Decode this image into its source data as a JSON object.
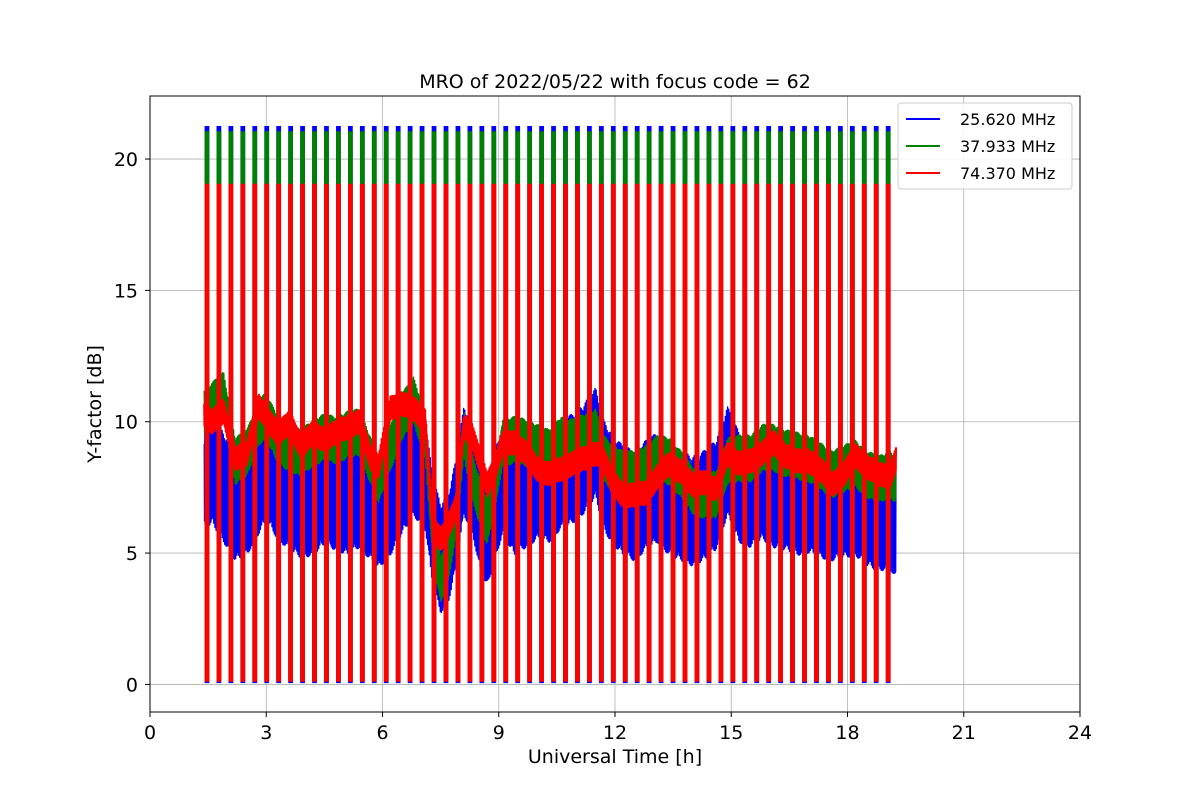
{
  "chart_data": {
    "type": "line",
    "title": "MRO of 2022/05/22 with focus code = 62",
    "xlabel": "Universal Time [h]",
    "ylabel": "Y-factor [dB]",
    "xlim": [
      0,
      24
    ],
    "ylim": [
      -1.05,
      22.4
    ],
    "xticks": [
      0,
      3,
      6,
      9,
      12,
      15,
      18,
      21,
      24
    ],
    "yticks": [
      0,
      5,
      10,
      15,
      20
    ],
    "grid": true,
    "legend_position": "top-right",
    "pulse_start_h": 1.47,
    "pulse_end_h": 19.05,
    "pulse_count": 58,
    "series": [
      {
        "name": "25.620 MHz",
        "color": "#0000ff",
        "pulse_peak": 21.2,
        "pulse_floor": 0.05,
        "baseline_range": [
          1.4,
          19.25
        ],
        "baseline_x": [
          1.4,
          1.6,
          1.9,
          2.2,
          2.5,
          2.8,
          3.0,
          3.3,
          3.6,
          3.9,
          4.2,
          4.5,
          4.8,
          5.1,
          5.4,
          5.7,
          5.9,
          6.2,
          6.5,
          6.8,
          7.1,
          7.3,
          7.5,
          7.7,
          7.9,
          8.1,
          8.3,
          8.5,
          8.7,
          8.9,
          9.1,
          9.4,
          9.7,
          10.0,
          10.3,
          10.6,
          10.9,
          11.2,
          11.5,
          11.7,
          11.9,
          12.2,
          12.5,
          12.8,
          13.1,
          13.4,
          13.7,
          14.0,
          14.3,
          14.6,
          14.9,
          15.2,
          15.5,
          15.8,
          16.1,
          16.4,
          16.7,
          17.0,
          17.3,
          17.6,
          17.9,
          18.2,
          18.5,
          18.8,
          19.1,
          19.25
        ],
        "baseline_y": [
          8.0,
          8.2,
          7.5,
          6.8,
          7.0,
          7.8,
          8.3,
          7.6,
          7.2,
          6.9,
          7.0,
          7.4,
          7.2,
          7.0,
          7.3,
          6.8,
          6.5,
          7.0,
          7.8,
          8.5,
          8.0,
          5.8,
          4.8,
          5.2,
          6.5,
          8.5,
          8.0,
          6.5,
          5.8,
          6.8,
          7.8,
          7.0,
          7.3,
          7.6,
          7.5,
          8.0,
          8.2,
          8.6,
          9.2,
          8.0,
          7.5,
          7.0,
          6.8,
          7.2,
          7.5,
          7.0,
          6.8,
          6.6,
          6.8,
          7.2,
          8.5,
          7.5,
          7.3,
          7.6,
          7.3,
          7.2,
          7.0,
          7.1,
          6.9,
          6.8,
          6.9,
          7.0,
          6.6,
          6.4,
          6.5,
          6.0
        ],
        "baseline_amp": 2.1
      },
      {
        "name": "37.933 MHz",
        "color": "#008000",
        "pulse_peak": 21.0,
        "pulse_floor": 0.15,
        "baseline_range": [
          1.4,
          19.25
        ],
        "baseline_x": [
          1.4,
          1.6,
          1.9,
          2.2,
          2.5,
          2.8,
          3.0,
          3.3,
          3.6,
          3.9,
          4.2,
          4.5,
          4.8,
          5.1,
          5.4,
          5.7,
          5.9,
          6.2,
          6.5,
          6.8,
          7.1,
          7.3,
          7.5,
          7.7,
          7.9,
          8.1,
          8.3,
          8.5,
          8.7,
          8.9,
          9.1,
          9.4,
          9.7,
          10.0,
          10.3,
          10.6,
          10.9,
          11.2,
          11.5,
          11.7,
          11.9,
          12.2,
          12.5,
          12.8,
          13.1,
          13.4,
          13.7,
          14.0,
          14.3,
          14.6,
          14.9,
          15.2,
          15.5,
          15.8,
          16.1,
          16.4,
          16.7,
          17.0,
          17.3,
          17.6,
          17.9,
          18.2,
          18.5,
          18.8,
          19.1,
          19.25
        ],
        "baseline_y": [
          10.3,
          10.6,
          11.0,
          8.5,
          8.8,
          10.0,
          10.2,
          9.3,
          9.0,
          8.8,
          9.2,
          9.4,
          9.3,
          9.5,
          9.6,
          8.5,
          7.8,
          9.0,
          10.2,
          10.8,
          9.5,
          5.5,
          4.0,
          4.8,
          6.5,
          9.5,
          8.0,
          7.0,
          6.2,
          7.5,
          9.2,
          9.3,
          9.2,
          9.0,
          8.8,
          9.3,
          9.2,
          9.4,
          9.6,
          8.6,
          8.3,
          8.0,
          8.0,
          8.2,
          8.6,
          8.5,
          8.0,
          7.4,
          7.2,
          7.2,
          8.5,
          8.6,
          8.6,
          9.0,
          9.0,
          8.8,
          8.7,
          8.6,
          8.3,
          8.0,
          8.2,
          8.4,
          8.0,
          7.8,
          8.0,
          7.8
        ],
        "baseline_amp": 0.9
      },
      {
        "name": "74.370 MHz",
        "color": "#ff0000",
        "pulse_peak": 19.0,
        "pulse_floor": 0.1,
        "baseline_range": [
          1.4,
          19.25
        ],
        "baseline_x": [
          1.4,
          1.6,
          1.9,
          2.2,
          2.5,
          2.8,
          3.0,
          3.3,
          3.6,
          3.9,
          4.2,
          4.5,
          4.8,
          5.1,
          5.4,
          5.7,
          5.9,
          6.2,
          6.5,
          6.8,
          7.1,
          7.3,
          7.5,
          7.7,
          7.9,
          8.1,
          8.3,
          8.5,
          8.7,
          8.9,
          9.1,
          9.4,
          9.7,
          10.0,
          10.3,
          10.6,
          10.9,
          11.2,
          11.5,
          11.7,
          11.9,
          12.2,
          12.5,
          12.8,
          13.1,
          13.4,
          13.7,
          14.0,
          14.3,
          14.6,
          14.9,
          15.2,
          15.5,
          15.8,
          16.1,
          16.4,
          16.7,
          17.0,
          17.3,
          17.6,
          17.9,
          18.2,
          18.5,
          18.8,
          19.1,
          19.25
        ],
        "baseline_y": [
          10.3,
          10.0,
          10.4,
          8.6,
          8.8,
          10.6,
          10.2,
          9.5,
          10.0,
          9.0,
          9.6,
          9.3,
          9.6,
          9.8,
          10.0,
          8.6,
          8.3,
          10.5,
          10.7,
          10.5,
          10.0,
          6.0,
          5.5,
          6.0,
          6.8,
          9.8,
          9.5,
          8.6,
          7.6,
          8.2,
          9.2,
          9.2,
          8.8,
          8.2,
          8.0,
          8.2,
          8.4,
          8.6,
          8.8,
          8.6,
          7.8,
          7.2,
          7.2,
          7.3,
          7.9,
          8.4,
          8.1,
          7.6,
          7.7,
          7.4,
          8.8,
          8.4,
          8.5,
          8.8,
          9.2,
          8.7,
          8.5,
          8.5,
          8.2,
          7.6,
          8.0,
          8.7,
          8.3,
          8.0,
          7.9,
          8.6
        ],
        "baseline_amp": 0.45
      }
    ]
  }
}
